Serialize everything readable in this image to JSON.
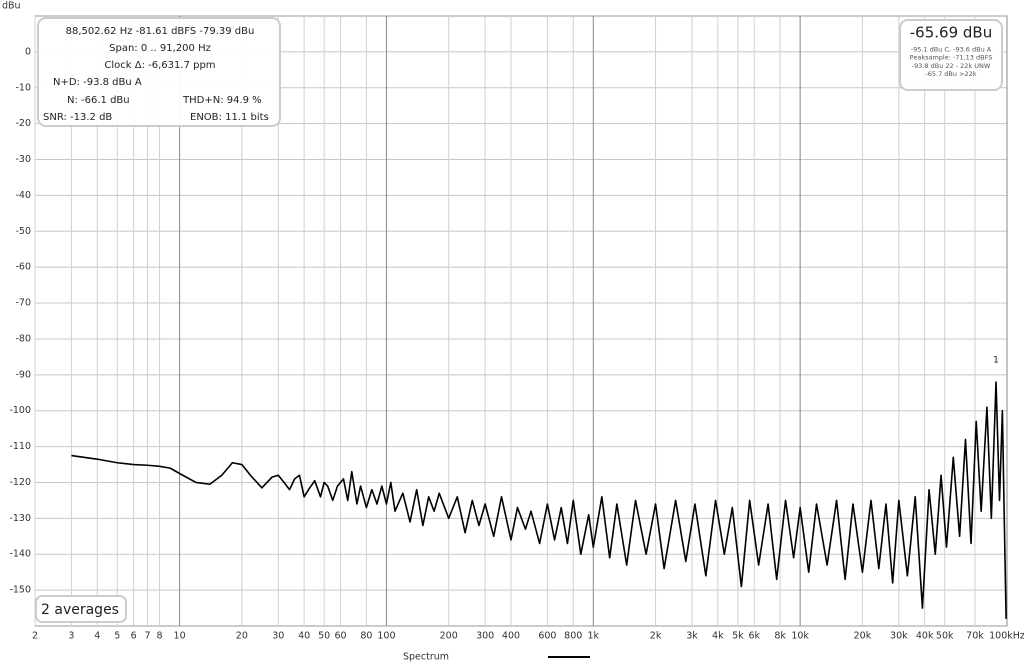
{
  "chart_data": {
    "type": "line",
    "y_label": "dBu",
    "x_log": true,
    "grid": true,
    "xlim": [
      2,
      100000
    ],
    "ylim": [
      -160,
      10
    ],
    "xticks": [
      2,
      3,
      4,
      5,
      6,
      7,
      8,
      10,
      20,
      30,
      40,
      50,
      60,
      80,
      100,
      200,
      300,
      400,
      600,
      800,
      {
        "value": 1000,
        "label": "1k"
      },
      {
        "value": 2000,
        "label": "2k"
      },
      {
        "value": 3000,
        "label": "3k"
      },
      {
        "value": 4000,
        "label": "4k"
      },
      {
        "value": 5000,
        "label": "5k"
      },
      {
        "value": 6000,
        "label": "6k"
      },
      {
        "value": 8000,
        "label": "8k"
      },
      {
        "value": 10000,
        "label": "10k"
      },
      {
        "value": 20000,
        "label": "20k"
      },
      {
        "value": 30000,
        "label": "30k"
      },
      {
        "value": 40000,
        "label": "40k"
      },
      {
        "value": 50000,
        "label": "50k"
      },
      {
        "value": 70000,
        "label": "70k"
      },
      {
        "value": 100000,
        "label": "100kHz"
      }
    ],
    "yticks": [
      0,
      -10,
      -20,
      -30,
      -40,
      -50,
      -60,
      -70,
      -80,
      -90,
      -100,
      -110,
      -120,
      -130,
      -140,
      -150
    ],
    "x": [
      3,
      4,
      5,
      6,
      7,
      8,
      9,
      10,
      12,
      14,
      16,
      18,
      20,
      22,
      25,
      28,
      30,
      32,
      34,
      36,
      38,
      40,
      42,
      45,
      48,
      50,
      52,
      55,
      58,
      62,
      65,
      68,
      72,
      75,
      80,
      85,
      90,
      95,
      100,
      105,
      110,
      120,
      130,
      140,
      150,
      160,
      170,
      180,
      200,
      220,
      240,
      260,
      280,
      300,
      330,
      360,
      400,
      430,
      470,
      500,
      550,
      600,
      650,
      700,
      750,
      800,
      870,
      950,
      1000,
      1100,
      1200,
      1300,
      1450,
      1600,
      1800,
      2000,
      2200,
      2500,
      2800,
      3100,
      3500,
      3900,
      4300,
      4700,
      5200,
      5700,
      6300,
      7000,
      7700,
      8500,
      9300,
      10000,
      11000,
      12000,
      13500,
      15000,
      16500,
      18000,
      20000,
      22000,
      24000,
      26000,
      28000,
      30000,
      33000,
      36000,
      39000,
      42000,
      45000,
      48000,
      51000,
      55000,
      59000,
      63000,
      67000,
      71000,
      75000,
      80000,
      84000,
      88500,
      92000,
      95000,
      97000,
      99000
    ],
    "series": [
      {
        "name": "Spectrum",
        "color": "#000000",
        "values": [
          -112.5,
          -113.5,
          -114.5,
          -115,
          -115.2,
          -115.5,
          -116,
          -117.5,
          -120,
          -120.5,
          -118,
          -114.5,
          -115,
          -118,
          -121.5,
          -118.5,
          -118,
          -120,
          -122,
          -119,
          -118,
          -124,
          -122,
          -119.5,
          -124,
          -120,
          -121,
          -125,
          -121,
          -119,
          -125,
          -117,
          -126,
          -121,
          -127,
          -122,
          -126,
          -121,
          -126,
          -120,
          -128,
          -123,
          -131,
          -122,
          -132,
          -124,
          -128,
          -123,
          -130,
          -124,
          -134,
          -125,
          -132,
          -126,
          -135,
          -124,
          -136,
          -127,
          -133,
          -128,
          -137,
          -126,
          -136,
          -127,
          -137,
          -125,
          -140,
          -129,
          -138,
          -124,
          -141,
          -126,
          -143,
          -125,
          -140,
          -126,
          -144,
          -125,
          -142,
          -126,
          -146,
          -125,
          -140,
          -127,
          -149,
          -125,
          -143,
          -126,
          -147,
          -125,
          -141,
          -127,
          -145,
          -126,
          -143,
          -125,
          -147,
          -126,
          -145,
          -125,
          -144,
          -126,
          -148,
          -125,
          -146,
          -124,
          -155,
          -122,
          -140,
          -118,
          -138,
          -113,
          -135,
          -108,
          -137,
          -103,
          -128,
          -99,
          -130,
          -92,
          -125,
          -100,
          -130,
          -158
        ]
      }
    ],
    "peak_marker": "1",
    "info_box": [
      "88,502.62 Hz  -81.61 dBFS  -79.39 dBu",
      "Span: 0 .. 91,200 Hz",
      "Clock Δ: -6,631.7 ppm",
      "N+D: -93.8 dBu A",
      "N: -66.1 dBu",
      "THD+N: 94.9 %",
      "SNR: -13.2 dB",
      "ENOB: 11.1 bits"
    ],
    "readout": [
      "-65.69 dBu",
      "-95.1 dBu C, -93.6 dBu A",
      "Peaksample: -71.13 dBFS",
      "-93.8 dBu 22 - 22k UNW",
      "-65.7 dBu >22k"
    ],
    "averages": "2 averages"
  }
}
